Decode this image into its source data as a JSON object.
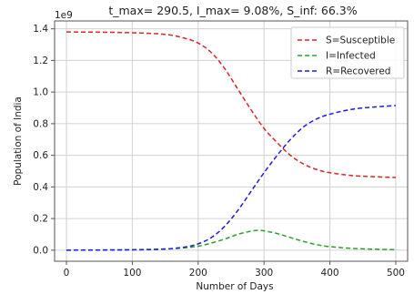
{
  "chart_data": {
    "type": "line",
    "title": "t_max= 290.5, I_max= 9.08%, S_inf: 66.3%",
    "xlabel": "Number of Days",
    "ylabel": "Population of India",
    "y_offset_label": "1e9",
    "xlim": [
      -18,
      518
    ],
    "ylim": [
      -0.07,
      1.45
    ],
    "x_ticks": [
      0,
      100,
      200,
      300,
      400,
      500
    ],
    "y_ticks": [
      0.0,
      0.2,
      0.4,
      0.6,
      0.8,
      1.0,
      1.2,
      1.4
    ],
    "y_tick_labels": [
      "0.0",
      "0.2",
      "0.4",
      "0.6",
      "0.8",
      "1.0",
      "1.2",
      "1.4"
    ],
    "grid": true,
    "legend_position": "top-right",
    "series": [
      {
        "name": "S=Susceptible",
        "color": "#d62728",
        "dash": "dashed",
        "points": [
          [
            0,
            1.38
          ],
          [
            50,
            1.379
          ],
          [
            100,
            1.375
          ],
          [
            150,
            1.365
          ],
          [
            180,
            1.34
          ],
          [
            200,
            1.31
          ],
          [
            220,
            1.25
          ],
          [
            240,
            1.15
          ],
          [
            260,
            1.02
          ],
          [
            280,
            0.89
          ],
          [
            300,
            0.77
          ],
          [
            320,
            0.68
          ],
          [
            340,
            0.6
          ],
          [
            360,
            0.545
          ],
          [
            380,
            0.51
          ],
          [
            400,
            0.49
          ],
          [
            440,
            0.47
          ],
          [
            500,
            0.46
          ]
        ]
      },
      {
        "name": "I=Infected",
        "color": "#2ca02c",
        "dash": "dashed",
        "points": [
          [
            0,
            0.0
          ],
          [
            100,
            0.003
          ],
          [
            150,
            0.008
          ],
          [
            180,
            0.015
          ],
          [
            200,
            0.025
          ],
          [
            220,
            0.045
          ],
          [
            240,
            0.07
          ],
          [
            260,
            0.1
          ],
          [
            280,
            0.12
          ],
          [
            290,
            0.125
          ],
          [
            300,
            0.122
          ],
          [
            320,
            0.105
          ],
          [
            340,
            0.08
          ],
          [
            360,
            0.055
          ],
          [
            380,
            0.035
          ],
          [
            400,
            0.022
          ],
          [
            440,
            0.01
          ],
          [
            500,
            0.003
          ]
        ]
      },
      {
        "name": "R=Recovered",
        "color": "#1f1fd6",
        "dash": "dashed",
        "points": [
          [
            0,
            0.0
          ],
          [
            100,
            0.002
          ],
          [
            150,
            0.007
          ],
          [
            180,
            0.02
          ],
          [
            200,
            0.04
          ],
          [
            220,
            0.08
          ],
          [
            240,
            0.15
          ],
          [
            260,
            0.25
          ],
          [
            280,
            0.37
          ],
          [
            300,
            0.49
          ],
          [
            320,
            0.6
          ],
          [
            340,
            0.7
          ],
          [
            360,
            0.78
          ],
          [
            380,
            0.83
          ],
          [
            400,
            0.86
          ],
          [
            440,
            0.895
          ],
          [
            500,
            0.915
          ]
        ]
      }
    ]
  }
}
